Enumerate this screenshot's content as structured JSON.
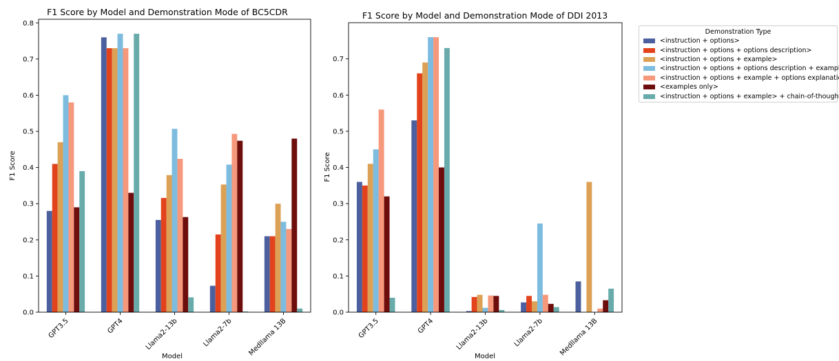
{
  "legend": {
    "title": "Demonstration Type",
    "location": "outside upper right",
    "entries": [
      {
        "label": "<instruction + options>",
        "color": "#4c5f9e"
      },
      {
        "label": "<instruction + options + options description>",
        "color": "#e2431c"
      },
      {
        "label": "<instruction + options + example>",
        "color": "#dca155"
      },
      {
        "label": "<instruction + options + options description + example>",
        "color": "#7dbcdf"
      },
      {
        "label": "<instruction + options +  example + options explanation",
        "color": "#f6987b"
      },
      {
        "label": "<examples only>",
        "color": "#6d0d0c"
      },
      {
        "label": "<instruction + options + example> + chain-of-thought",
        "color": "#69abab"
      }
    ]
  },
  "chart_data": [
    {
      "type": "bar",
      "title": "F1 Score by Model and Demonstration Mode of BC5CDR",
      "xlabel": "Model",
      "ylabel": "F1 Score",
      "ylim": [
        0,
        0.81
      ],
      "yticks": [
        "0.0",
        "0.1",
        "0.2",
        "0.3",
        "0.4",
        "0.5",
        "0.6",
        "0.7",
        "0.8"
      ],
      "grid": false,
      "categories": [
        "GPT3.5",
        "GPT4",
        "Llama2-13b",
        "Llama2-7b",
        "Medllama 13B"
      ],
      "series": [
        {
          "name": "<instruction + options>",
          "values": [
            0.28,
            0.76,
            0.255,
            0.073,
            0.21
          ]
        },
        {
          "name": "<instruction + options + options description>",
          "values": [
            0.41,
            0.73,
            0.316,
            0.215,
            0.21
          ]
        },
        {
          "name": "<instruction + options + example>",
          "values": [
            0.47,
            0.73,
            0.379,
            0.353,
            0.3
          ]
        },
        {
          "name": "<instruction + options + options description + example>",
          "values": [
            0.6,
            0.77,
            0.507,
            0.408,
            0.25
          ]
        },
        {
          "name": "<instruction + options +  example + options explanation",
          "values": [
            0.58,
            0.73,
            0.424,
            0.493,
            0.23
          ]
        },
        {
          "name": "<examples only>",
          "values": [
            0.29,
            0.33,
            0.263,
            0.474,
            0.48
          ]
        },
        {
          "name": "<instruction + options + example> + chain-of-thought",
          "values": [
            0.39,
            0.77,
            0.041,
            0.002,
            0.01
          ]
        }
      ]
    },
    {
      "type": "bar",
      "title": "F1 Score by Model and Demonstration Mode of DDI 2013",
      "xlabel": "Model",
      "ylabel": "F1 Score",
      "ylim": [
        0,
        0.8
      ],
      "yticks": [
        "0.0",
        "0.1",
        "0.2",
        "0.3",
        "0.4",
        "0.5",
        "0.6",
        "0.7"
      ],
      "grid": false,
      "categories": [
        "GPT3.5",
        "GPT4",
        "Llama2-13b",
        "Llama2-7b",
        "Medllama 13B"
      ],
      "series": [
        {
          "name": "<instruction + options>",
          "values": [
            0.36,
            0.53,
            0.003,
            0.027,
            0.085
          ]
        },
        {
          "name": "<instruction + options + options description>",
          "values": [
            0.35,
            0.66,
            0.042,
            0.045,
            0.0
          ]
        },
        {
          "name": "<instruction + options + example>",
          "values": [
            0.41,
            0.69,
            0.048,
            0.03,
            0.36
          ]
        },
        {
          "name": "<instruction + options + options description + example>",
          "values": [
            0.45,
            0.76,
            0.012,
            0.245,
            0.0
          ]
        },
        {
          "name": "<instruction + options +  example + options explanation",
          "values": [
            0.56,
            0.76,
            0.046,
            0.048,
            0.01
          ]
        },
        {
          "name": "<examples only>",
          "values": [
            0.32,
            0.4,
            0.045,
            0.023,
            0.033
          ]
        },
        {
          "name": "<instruction + options + example> + chain-of-thought",
          "values": [
            0.04,
            0.73,
            0.006,
            0.014,
            0.065
          ]
        }
      ]
    }
  ]
}
